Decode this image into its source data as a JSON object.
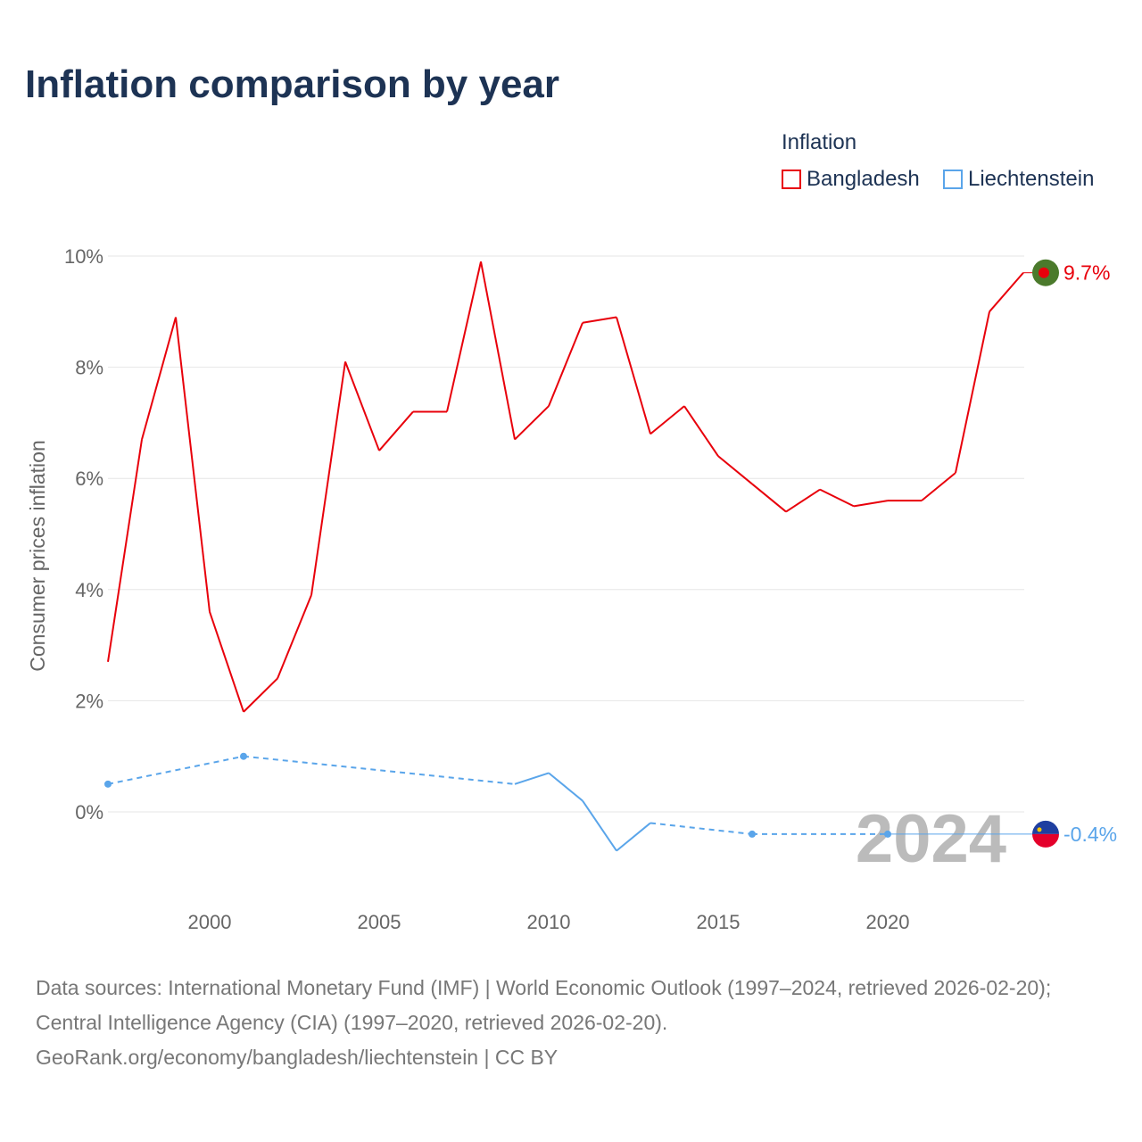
{
  "title": "Inflation comparison by year",
  "legend": {
    "title": "Inflation",
    "items": [
      "Bangladesh",
      "Liechtenstein"
    ]
  },
  "colors": {
    "Bangladesh": "#e8000b",
    "Liechtenstein": "#5aa5ea"
  },
  "source": {
    "line1": "Data sources: International Monetary Fund (IMF) | World Economic Outlook (1997–2024, retrieved 2026-02-20); Central Intelligence Agency (CIA) (1997–2020, retrieved 2026-02-20).",
    "line2": "GeoRank.org/economy/bangladesh/liechtenstein | CC BY"
  },
  "chart_data": {
    "type": "line",
    "title": "Inflation comparison by year",
    "ylabel": "Consumer prices inflation",
    "ylim": [
      -1.5,
      10
    ],
    "xlim": [
      1997,
      2024
    ],
    "yticks": [
      "0%",
      "2%",
      "4%",
      "6%",
      "8%",
      "10%"
    ],
    "xticks": [
      "2000",
      "2005",
      "2010",
      "2015",
      "2020"
    ],
    "year_label": "2024",
    "series": [
      {
        "name": "Bangladesh",
        "end_label": "9.7%",
        "points": [
          [
            1997,
            2.7
          ],
          [
            1998,
            6.7
          ],
          [
            1999,
            8.9
          ],
          [
            2000,
            3.6
          ],
          [
            2001,
            1.8
          ],
          [
            2002,
            2.4
          ],
          [
            2003,
            3.9
          ],
          [
            2004,
            8.1
          ],
          [
            2005,
            6.5
          ],
          [
            2006,
            7.2
          ],
          [
            2007,
            7.2
          ],
          [
            2008,
            9.9
          ],
          [
            2009,
            6.7
          ],
          [
            2010,
            7.3
          ],
          [
            2011,
            8.8
          ],
          [
            2012,
            8.9
          ],
          [
            2013,
            6.8
          ],
          [
            2014,
            7.3
          ],
          [
            2015,
            6.4
          ],
          [
            2016,
            5.9
          ],
          [
            2017,
            5.4
          ],
          [
            2018,
            5.8
          ],
          [
            2019,
            5.5
          ],
          [
            2020,
            5.6
          ],
          [
            2021,
            5.6
          ],
          [
            2022,
            6.1
          ],
          [
            2023,
            9.0
          ],
          [
            2024,
            9.7
          ]
        ]
      },
      {
        "name": "Liechtenstein",
        "end_label": "-0.4%",
        "points": [
          [
            1997,
            0.5
          ],
          [
            2001,
            1.0
          ],
          [
            2009,
            0.5
          ],
          [
            2010,
            0.7
          ],
          [
            2011,
            0.2
          ],
          [
            2012,
            -0.7
          ],
          [
            2013,
            -0.2
          ],
          [
            2016,
            -0.4
          ],
          [
            2020,
            -0.4
          ]
        ]
      }
    ]
  }
}
